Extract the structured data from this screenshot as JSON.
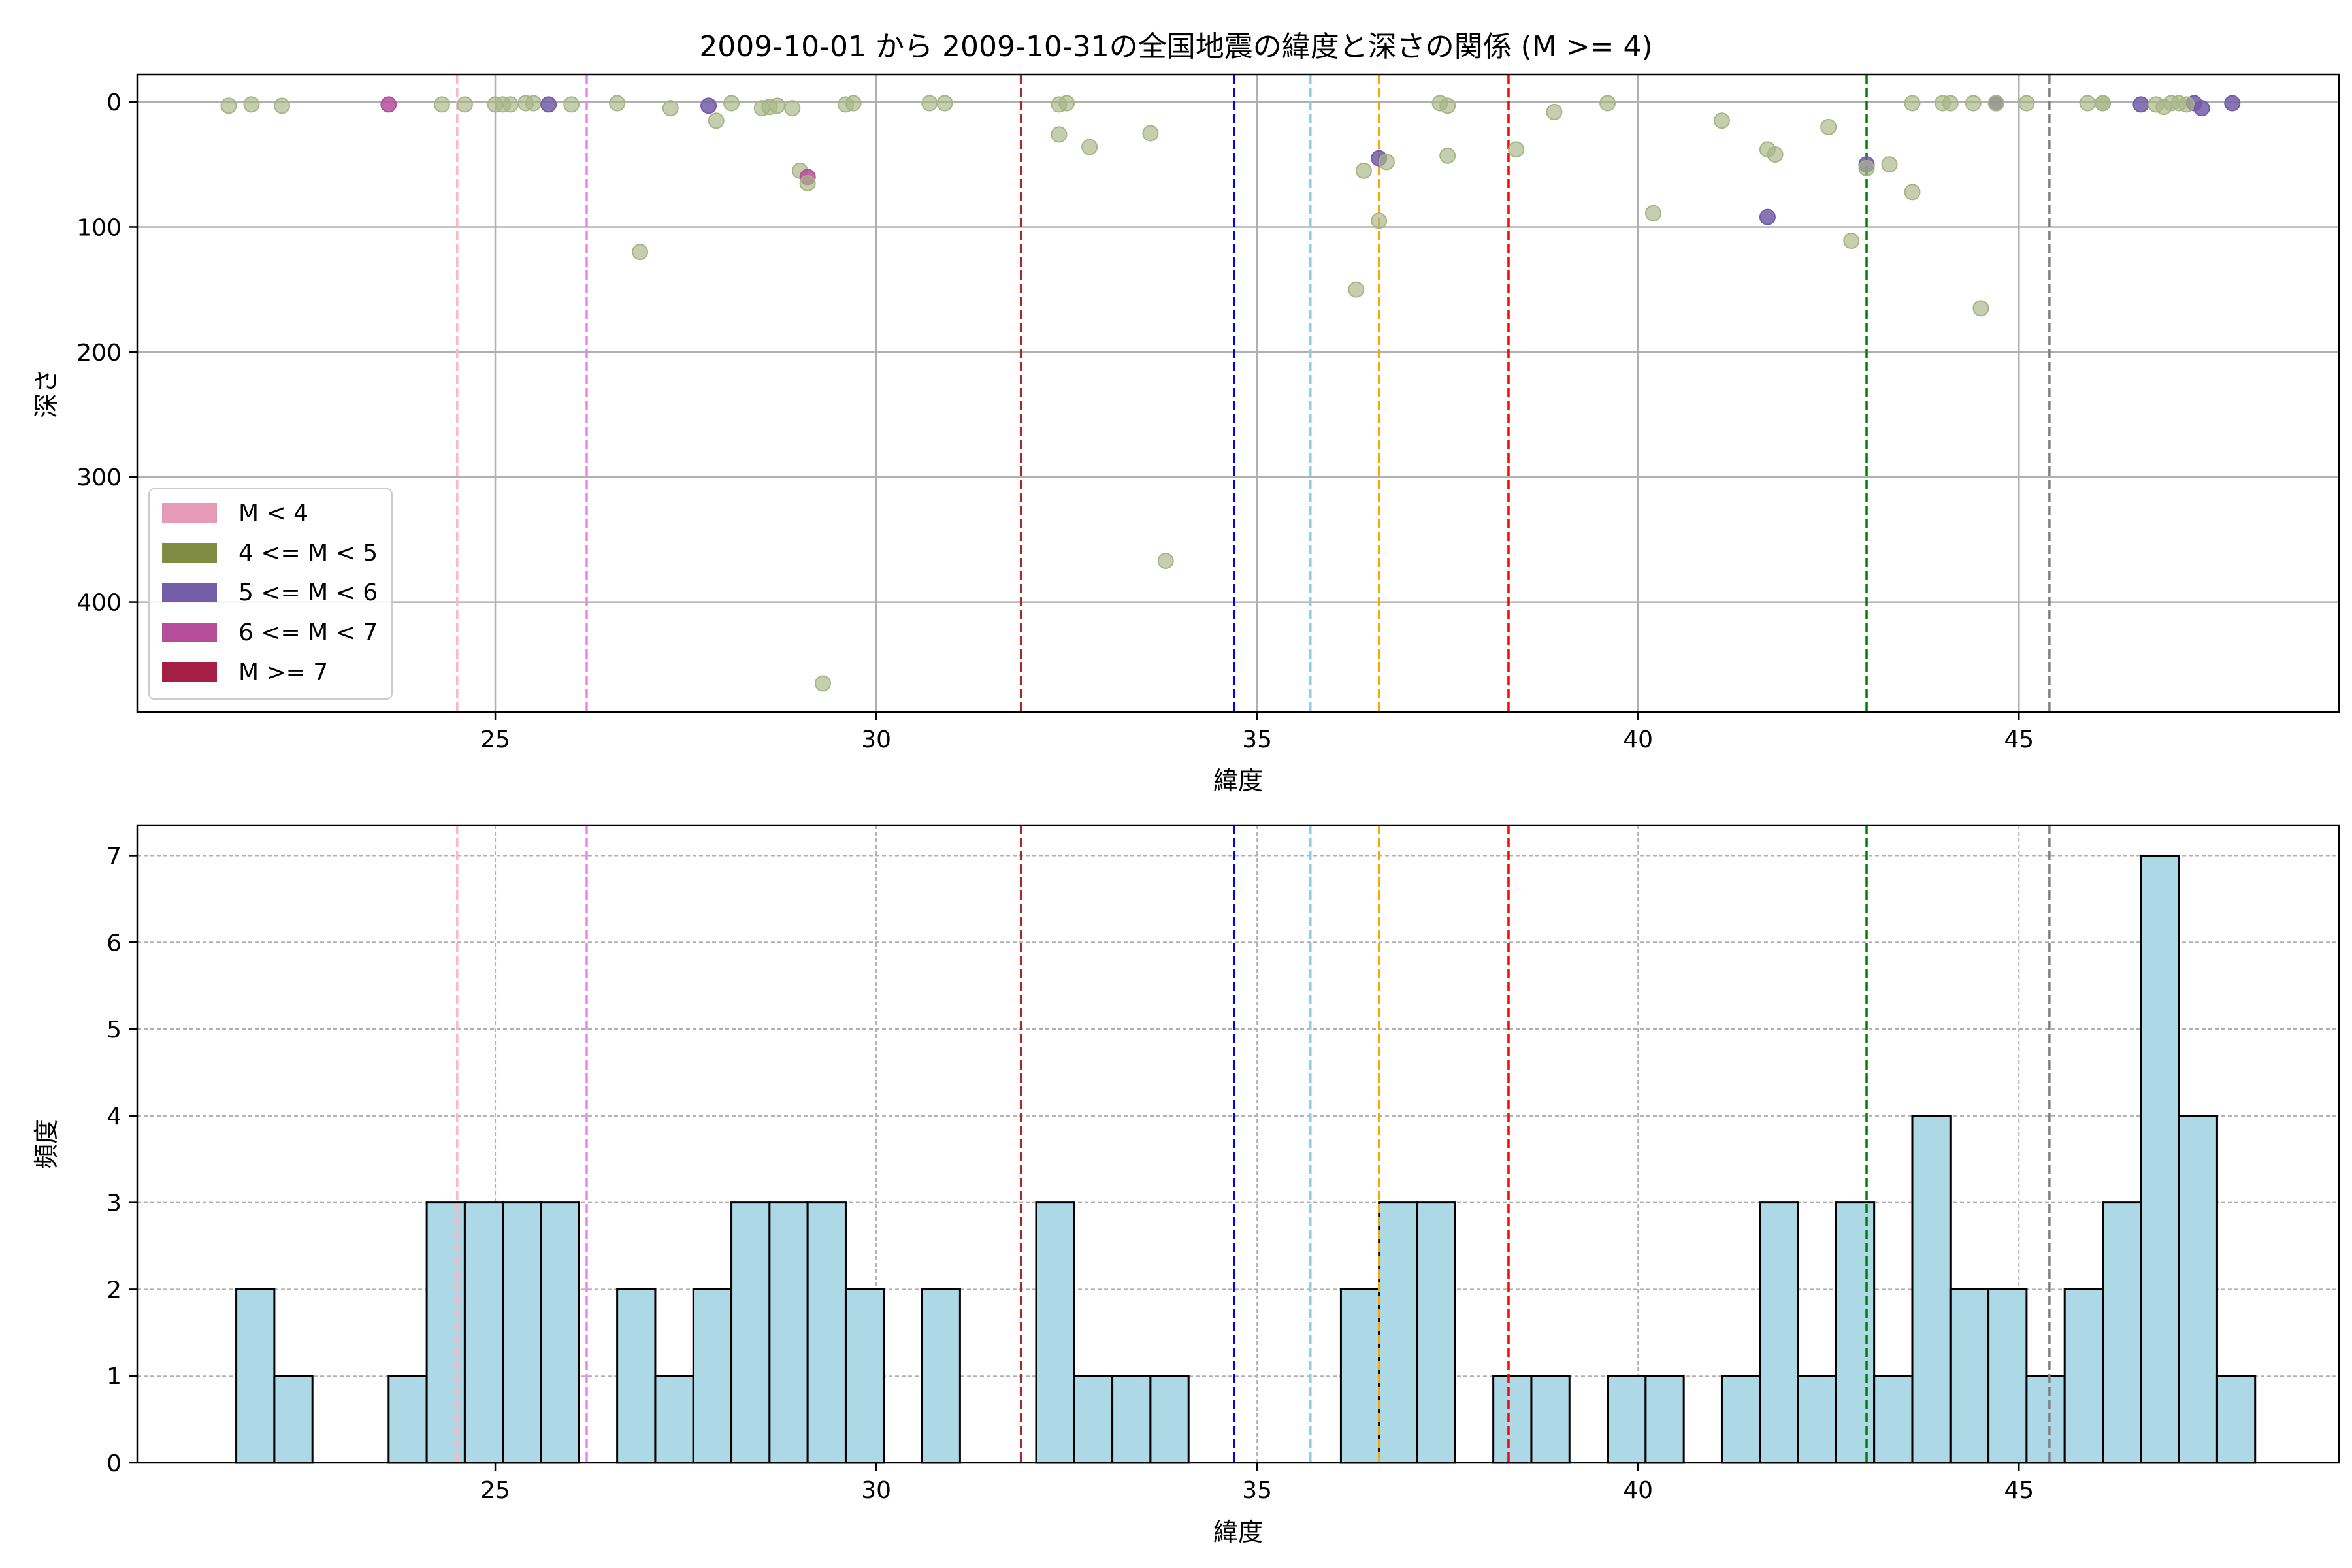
{
  "figure_title": "2009-10-01 から 2009-10-31の全国地震の緯度と深さの関係 (M >= 4)",
  "colors": {
    "m_lt4": "#e79ab5",
    "m_4_5": "#7f8c42",
    "m_5_6": "#735da8",
    "m_6_7": "#b54d9b",
    "m_ge7": "#a41e45",
    "scatter_point": "#a6b584",
    "hist_fill": "#add8e6",
    "hist_edge": "#000000",
    "grid": "#b0b0b0"
  },
  "vlines": [
    {
      "x": 24.5,
      "color": "#ffb6c1"
    },
    {
      "x": 26.2,
      "color": "#ee82ee"
    },
    {
      "x": 31.9,
      "color": "#a52a2a"
    },
    {
      "x": 34.7,
      "color": "#0000ff"
    },
    {
      "x": 35.7,
      "color": "#87ceeb"
    },
    {
      "x": 36.6,
      "color": "#ffa500"
    },
    {
      "x": 38.3,
      "color": "#ff0000"
    },
    {
      "x": 43.0,
      "color": "#008000"
    },
    {
      "x": 45.4,
      "color": "#808080"
    }
  ],
  "chart_data": [
    {
      "type": "scatter",
      "xlabel": "緯度",
      "ylabel": "深さ",
      "xlim": [
        20.3,
        49.2
      ],
      "ylim": [
        488,
        -22
      ],
      "y_inverted": true,
      "xticks": [
        25,
        30,
        35,
        40,
        45
      ],
      "yticks": [
        0,
        100,
        200,
        300,
        400
      ],
      "grid": true,
      "legend": {
        "location": "lower-left",
        "entries": [
          {
            "label": "M < 4",
            "color_key": "m_lt4"
          },
          {
            "label": "4 <= M < 5",
            "color_key": "m_4_5"
          },
          {
            "label": "5 <= M < 6",
            "color_key": "m_5_6"
          },
          {
            "label": "6 <= M < 7",
            "color_key": "m_6_7"
          },
          {
            "label": "M >= 7",
            "color_key": "m_ge7"
          }
        ]
      },
      "points": [
        {
          "x": 21.5,
          "y": 3,
          "c": "m_4_5"
        },
        {
          "x": 21.8,
          "y": 2,
          "c": "m_4_5"
        },
        {
          "x": 22.2,
          "y": 3,
          "c": "m_4_5"
        },
        {
          "x": 23.6,
          "y": 2,
          "c": "m_6_7"
        },
        {
          "x": 24.3,
          "y": 2,
          "c": "m_4_5"
        },
        {
          "x": 24.6,
          "y": 2,
          "c": "m_4_5"
        },
        {
          "x": 25.0,
          "y": 2,
          "c": "m_4_5"
        },
        {
          "x": 25.1,
          "y": 2,
          "c": "m_4_5"
        },
        {
          "x": 25.2,
          "y": 2,
          "c": "m_4_5"
        },
        {
          "x": 25.4,
          "y": 1,
          "c": "m_4_5"
        },
        {
          "x": 25.5,
          "y": 1,
          "c": "m_4_5"
        },
        {
          "x": 25.7,
          "y": 2,
          "c": "m_5_6"
        },
        {
          "x": 26.0,
          "y": 2,
          "c": "m_4_5"
        },
        {
          "x": 26.6,
          "y": 1,
          "c": "m_4_5"
        },
        {
          "x": 26.9,
          "y": 120,
          "c": "m_4_5"
        },
        {
          "x": 27.3,
          "y": 5,
          "c": "m_4_5"
        },
        {
          "x": 27.8,
          "y": 3,
          "c": "m_5_6"
        },
        {
          "x": 27.9,
          "y": 15,
          "c": "m_4_5"
        },
        {
          "x": 28.1,
          "y": 1,
          "c": "m_4_5"
        },
        {
          "x": 28.5,
          "y": 5,
          "c": "m_4_5"
        },
        {
          "x": 28.6,
          "y": 4,
          "c": "m_4_5"
        },
        {
          "x": 28.7,
          "y": 3,
          "c": "m_4_5"
        },
        {
          "x": 28.9,
          "y": 5,
          "c": "m_4_5"
        },
        {
          "x": 29.0,
          "y": 55,
          "c": "m_4_5"
        },
        {
          "x": 29.1,
          "y": 60,
          "c": "m_6_7"
        },
        {
          "x": 29.1,
          "y": 65,
          "c": "m_4_5"
        },
        {
          "x": 29.3,
          "y": 465,
          "c": "m_4_5"
        },
        {
          "x": 29.6,
          "y": 2,
          "c": "m_4_5"
        },
        {
          "x": 29.7,
          "y": 1,
          "c": "m_4_5"
        },
        {
          "x": 30.7,
          "y": 1,
          "c": "m_4_5"
        },
        {
          "x": 30.9,
          "y": 1,
          "c": "m_4_5"
        },
        {
          "x": 32.4,
          "y": 2,
          "c": "m_4_5"
        },
        {
          "x": 32.5,
          "y": 1,
          "c": "m_4_5"
        },
        {
          "x": 32.4,
          "y": 26,
          "c": "m_4_5"
        },
        {
          "x": 32.8,
          "y": 36,
          "c": "m_4_5"
        },
        {
          "x": 33.6,
          "y": 25,
          "c": "m_4_5"
        },
        {
          "x": 33.8,
          "y": 367,
          "c": "m_4_5"
        },
        {
          "x": 36.3,
          "y": 150,
          "c": "m_4_5"
        },
        {
          "x": 36.4,
          "y": 55,
          "c": "m_4_5"
        },
        {
          "x": 36.6,
          "y": 45,
          "c": "m_5_6"
        },
        {
          "x": 36.7,
          "y": 48,
          "c": "m_4_5"
        },
        {
          "x": 36.6,
          "y": 95,
          "c": "m_4_5"
        },
        {
          "x": 37.4,
          "y": 1,
          "c": "m_4_5"
        },
        {
          "x": 37.5,
          "y": 3,
          "c": "m_4_5"
        },
        {
          "x": 37.5,
          "y": 43,
          "c": "m_4_5"
        },
        {
          "x": 38.4,
          "y": 38,
          "c": "m_4_5"
        },
        {
          "x": 38.9,
          "y": 8,
          "c": "m_4_5"
        },
        {
          "x": 39.6,
          "y": 1,
          "c": "m_4_5"
        },
        {
          "x": 40.2,
          "y": 89,
          "c": "m_4_5"
        },
        {
          "x": 41.1,
          "y": 15,
          "c": "m_4_5"
        },
        {
          "x": 41.7,
          "y": 38,
          "c": "m_4_5"
        },
        {
          "x": 41.8,
          "y": 42,
          "c": "m_4_5"
        },
        {
          "x": 41.7,
          "y": 92,
          "c": "m_5_6"
        },
        {
          "x": 42.5,
          "y": 20,
          "c": "m_4_5"
        },
        {
          "x": 42.8,
          "y": 111,
          "c": "m_4_5"
        },
        {
          "x": 43.0,
          "y": 50,
          "c": "m_5_6"
        },
        {
          "x": 43.0,
          "y": 53,
          "c": "m_4_5"
        },
        {
          "x": 43.3,
          "y": 50,
          "c": "m_4_5"
        },
        {
          "x": 43.6,
          "y": 1,
          "c": "m_4_5"
        },
        {
          "x": 43.6,
          "y": 72,
          "c": "m_4_5"
        },
        {
          "x": 44.0,
          "y": 1,
          "c": "m_4_5"
        },
        {
          "x": 44.1,
          "y": 1,
          "c": "m_4_5"
        },
        {
          "x": 44.4,
          "y": 1,
          "c": "m_4_5"
        },
        {
          "x": 44.5,
          "y": 165,
          "c": "m_4_5"
        },
        {
          "x": 44.7,
          "y": 1,
          "c": "m_5_6"
        },
        {
          "x": 44.7,
          "y": 1,
          "c": "m_4_5"
        },
        {
          "x": 45.1,
          "y": 1,
          "c": "m_4_5"
        },
        {
          "x": 45.9,
          "y": 1,
          "c": "m_4_5"
        },
        {
          "x": 46.1,
          "y": 1,
          "c": "m_4_5"
        },
        {
          "x": 46.1,
          "y": 1,
          "c": "m_4_5"
        },
        {
          "x": 46.6,
          "y": 2,
          "c": "m_5_6"
        },
        {
          "x": 46.8,
          "y": 2,
          "c": "m_4_5"
        },
        {
          "x": 46.9,
          "y": 4,
          "c": "m_4_5"
        },
        {
          "x": 47.0,
          "y": 1,
          "c": "m_4_5"
        },
        {
          "x": 47.1,
          "y": 1,
          "c": "m_4_5"
        },
        {
          "x": 47.3,
          "y": 1,
          "c": "m_5_6"
        },
        {
          "x": 47.2,
          "y": 2,
          "c": "m_4_5"
        },
        {
          "x": 47.4,
          "y": 5,
          "c": "m_5_6"
        },
        {
          "x": 47.8,
          "y": 1,
          "c": "m_5_6"
        }
      ]
    },
    {
      "type": "bar",
      "subtype": "histogram",
      "xlabel": "緯度",
      "ylabel": "頻度",
      "xlim": [
        20.3,
        49.2
      ],
      "ylim": [
        0,
        7.35
      ],
      "xticks": [
        25,
        30,
        35,
        40,
        45
      ],
      "yticks": [
        0,
        1,
        2,
        3,
        4,
        5,
        6,
        7
      ],
      "grid": true,
      "bin_start": 21.6,
      "bin_width": 0.5,
      "values": [
        2,
        1,
        0,
        0,
        1,
        3,
        3,
        3,
        3,
        0,
        2,
        1,
        2,
        3,
        3,
        3,
        2,
        0,
        2,
        0,
        0,
        3,
        1,
        1,
        1,
        0,
        0,
        0,
        0,
        2,
        3,
        3,
        0,
        1,
        1,
        0,
        1,
        1,
        0,
        1,
        3,
        1,
        3,
        1,
        4,
        2,
        2,
        1,
        2,
        3,
        7,
        4,
        1
      ]
    }
  ]
}
